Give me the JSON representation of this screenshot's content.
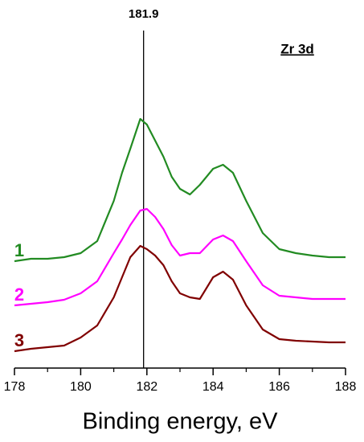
{
  "chart_data": {
    "type": "line",
    "title": "Zr 3d",
    "x_label": "Binding energy, eV",
    "x": [
      178,
      178.5,
      179,
      179.5,
      180,
      180.5,
      181,
      181.25,
      181.5,
      181.8,
      182,
      182.25,
      182.5,
      182.75,
      183,
      183.3,
      183.6,
      184,
      184.3,
      184.6,
      185,
      185.5,
      186,
      186.5,
      187,
      187.5,
      188
    ],
    "series": [
      {
        "name": "1",
        "color": "#228B22",
        "values": [
          133,
          136,
          136,
          138,
          143,
          158,
          208,
          243,
          273,
          310,
          303,
          283,
          263,
          238,
          223,
          216,
          228,
          248,
          253,
          243,
          208,
          168,
          148,
          143,
          140,
          138,
          138
        ]
      },
      {
        "name": "2",
        "color": "#FF00FF",
        "values": [
          78,
          80,
          82,
          85,
          93,
          108,
          143,
          160,
          178,
          196,
          198,
          188,
          173,
          153,
          140,
          143,
          143,
          160,
          165,
          158,
          133,
          103,
          90,
          88,
          86,
          86,
          86
        ]
      },
      {
        "name": "3",
        "color": "#800000",
        "values": [
          21,
          24,
          26,
          28,
          38,
          53,
          88,
          113,
          138,
          152,
          148,
          140,
          128,
          108,
          93,
          88,
          86,
          113,
          120,
          110,
          78,
          48,
          36,
          34,
          33,
          32,
          32
        ]
      }
    ],
    "reference_line": 181.9,
    "xlim": [
      178,
      188
    ],
    "xticks": [
      178,
      180,
      182,
      184,
      186,
      188
    ],
    "xminorticks": [
      179,
      181,
      183,
      185,
      187
    ],
    "ylim": [
      0,
      458
    ]
  }
}
